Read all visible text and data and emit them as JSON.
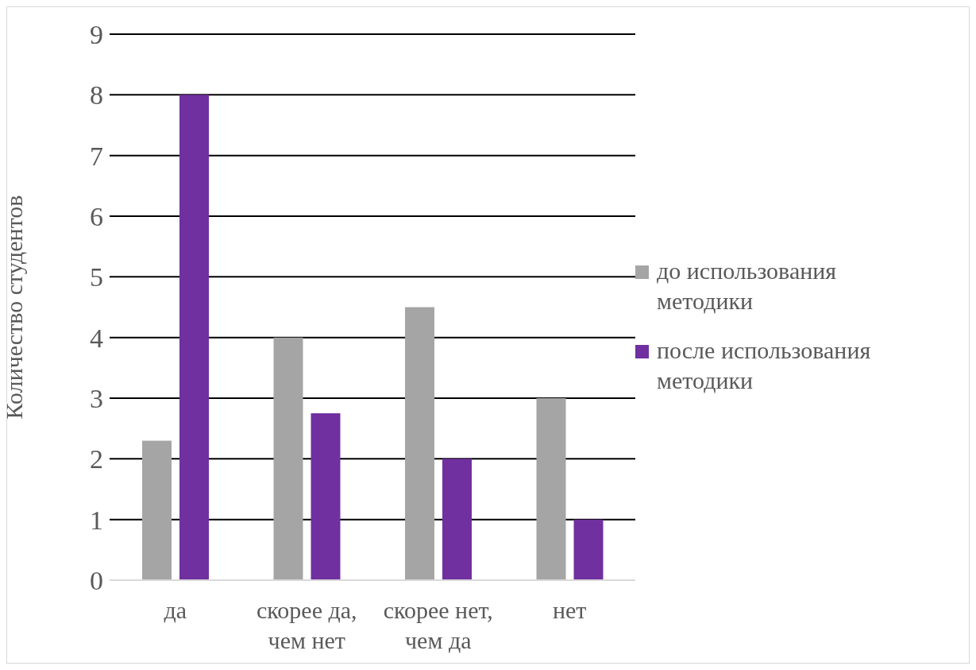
{
  "chart_data": {
    "type": "bar",
    "ylabel": "Количество студентов",
    "categories": [
      "да",
      "скорее да, чем нет",
      "скорее нет, чем да",
      "нет"
    ],
    "series": [
      {
        "name": "до использования методики",
        "color": "#a5a5a5",
        "values": [
          2.3,
          4,
          4.5,
          3
        ]
      },
      {
        "name": "после использования методики",
        "color": "#7030a0",
        "values": [
          8,
          2.75,
          2,
          1
        ]
      }
    ],
    "ylim": [
      0,
      9
    ],
    "yticks": [
      0,
      1,
      2,
      3,
      4,
      5,
      6,
      7,
      8,
      9
    ],
    "grid": "y",
    "legend": "right"
  }
}
